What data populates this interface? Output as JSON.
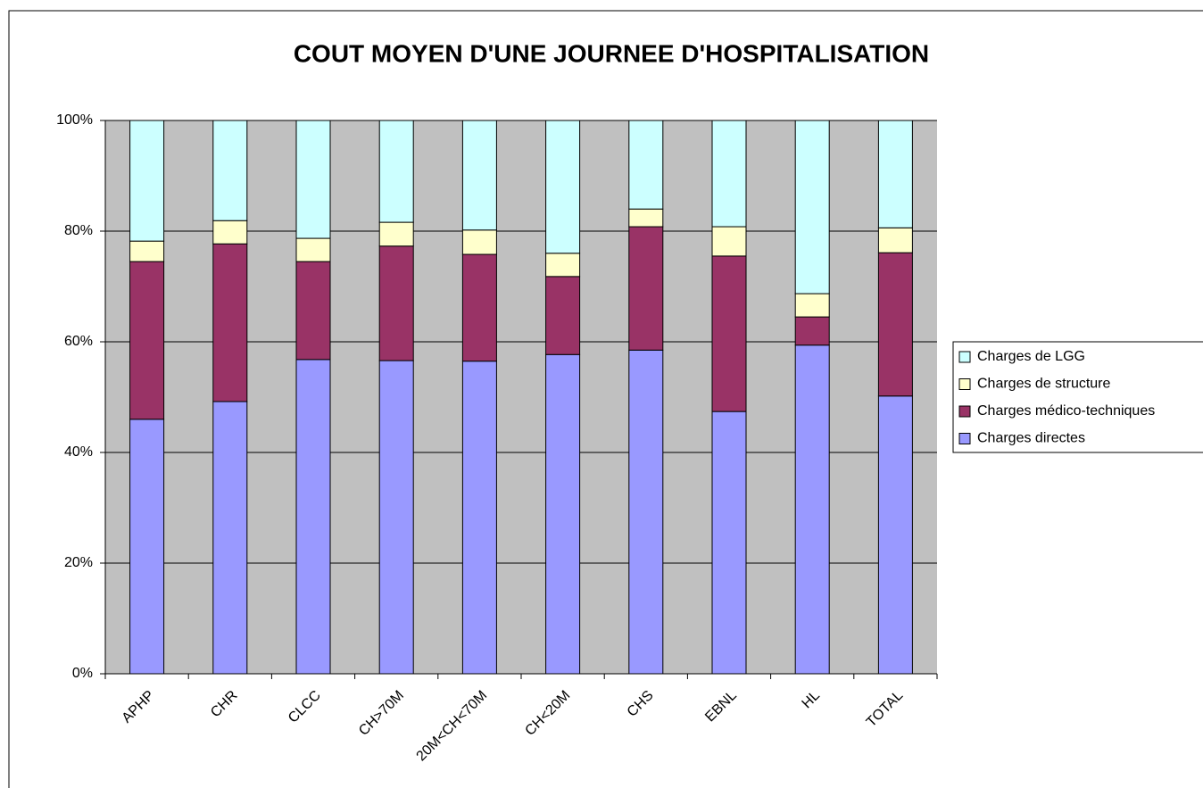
{
  "chart_data": {
    "type": "stacked_bar_100",
    "title": "COUT MOYEN D'UNE JOURNEE D'HOSPITALISATION",
    "categories": [
      "APHP",
      "CHR",
      "CLCC",
      "CH>70M",
      "20M<CH<70M",
      "CH<20M",
      "CHS",
      "EBNL",
      "HL",
      "TOTAL"
    ],
    "series": [
      {
        "name": "Charges directes",
        "color": "#9999ff",
        "values": [
          46.0,
          49.2,
          56.8,
          56.6,
          56.5,
          57.7,
          58.5,
          47.4,
          59.4,
          50.2
        ]
      },
      {
        "name": "Charges médico-techniques",
        "color": "#993366",
        "values": [
          28.5,
          28.5,
          17.7,
          20.7,
          19.3,
          14.1,
          22.3,
          28.1,
          5.1,
          25.9
        ]
      },
      {
        "name": "Charges de structure",
        "color": "#ffffcc",
        "values": [
          3.7,
          4.2,
          4.2,
          4.3,
          4.4,
          4.2,
          3.2,
          5.3,
          4.2,
          4.5
        ]
      },
      {
        "name": "Charges de LGG",
        "color": "#ccffff",
        "values": [
          21.8,
          18.1,
          21.3,
          18.4,
          19.8,
          24.0,
          16.0,
          19.2,
          31.3,
          19.4
        ]
      }
    ],
    "ylim": [
      0,
      100
    ],
    "yticks": [
      {
        "value": 0,
        "label": "0%"
      },
      {
        "value": 20,
        "label": "20%"
      },
      {
        "value": 40,
        "label": "40%"
      },
      {
        "value": 60,
        "label": "60%"
      },
      {
        "value": 80,
        "label": "80%"
      },
      {
        "value": 100,
        "label": "100%"
      }
    ],
    "grid": true,
    "plot_background": "#c0c0c0",
    "legend": "right"
  }
}
